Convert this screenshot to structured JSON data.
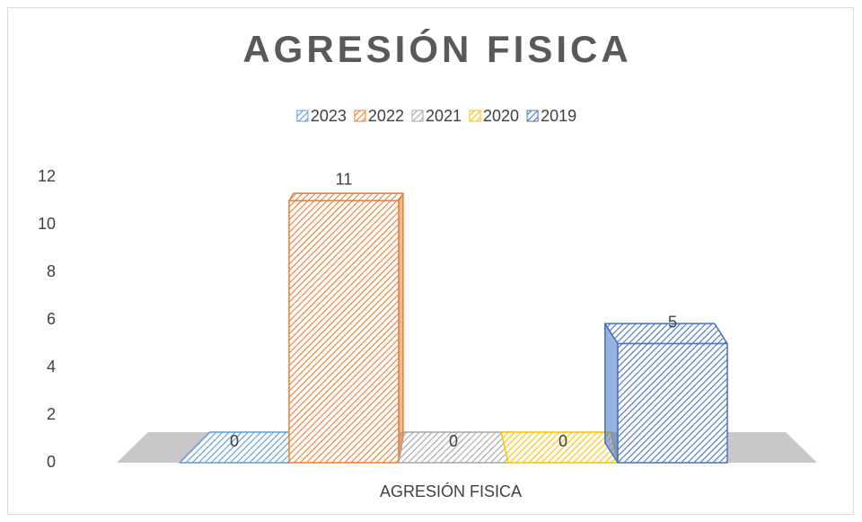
{
  "chart_data": {
    "type": "bar3d",
    "title": "AGRESIÓN FISICA",
    "categories": [
      "AGRESIÓN FISICA"
    ],
    "series": [
      {
        "name": "2023",
        "color": "#5b9bd5",
        "values": [
          0
        ]
      },
      {
        "name": "2022",
        "color": "#ed7d31",
        "values": [
          11
        ]
      },
      {
        "name": "2021",
        "color": "#a5a5a5",
        "values": [
          0
        ]
      },
      {
        "name": "2020",
        "color": "#ffc000",
        "values": [
          0
        ]
      },
      {
        "name": "2019",
        "color": "#4472c4",
        "values": [
          5
        ]
      }
    ],
    "ylim": [
      0,
      12
    ],
    "yticks": [
      0,
      2,
      4,
      6,
      8,
      10,
      12
    ],
    "grid": false,
    "legend": "top"
  }
}
